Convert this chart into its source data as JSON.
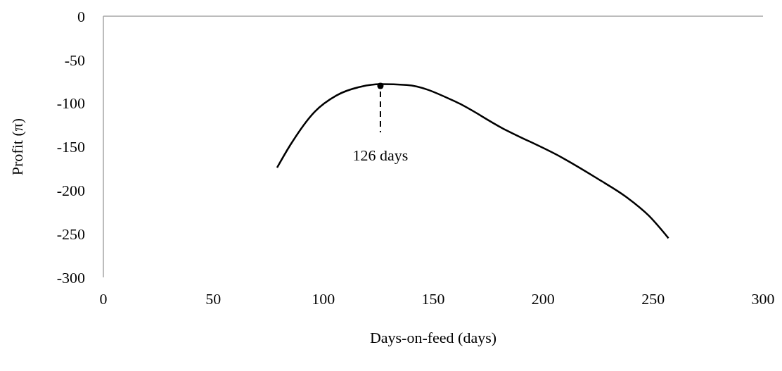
{
  "chart_data": {
    "type": "line",
    "xlabel": "Days-on-feed (days)",
    "ylabel": "Profit (π)",
    "xlim": [
      0,
      300
    ],
    "xticks": [
      0,
      50,
      100,
      150,
      200,
      250,
      300
    ],
    "ylim": [
      -300,
      0
    ],
    "yticks": [
      -300,
      -250,
      -200,
      -150,
      -100,
      -50,
      0
    ],
    "grid": false,
    "marker": "none",
    "line_style": "solid",
    "series": [
      {
        "color": "#000000",
        "x": [
          79,
          85,
          96,
          106,
          117,
          126,
          138,
          160,
          181,
          209,
          225,
          238,
          248,
          257
        ],
        "values": [
          -174,
          -148,
          -110,
          -91,
          -81,
          -78,
          -79,
          -98,
          -128,
          -163,
          -187,
          -208,
          -229,
          -255
        ]
      },
      {
        "type": "scatter",
        "color": "#000000",
        "marker": "circle",
        "x": [
          126
        ],
        "values": [
          -80
        ]
      }
    ],
    "annotations": [
      {
        "text": "126 days",
        "x": 126,
        "y": -80
      }
    ]
  }
}
